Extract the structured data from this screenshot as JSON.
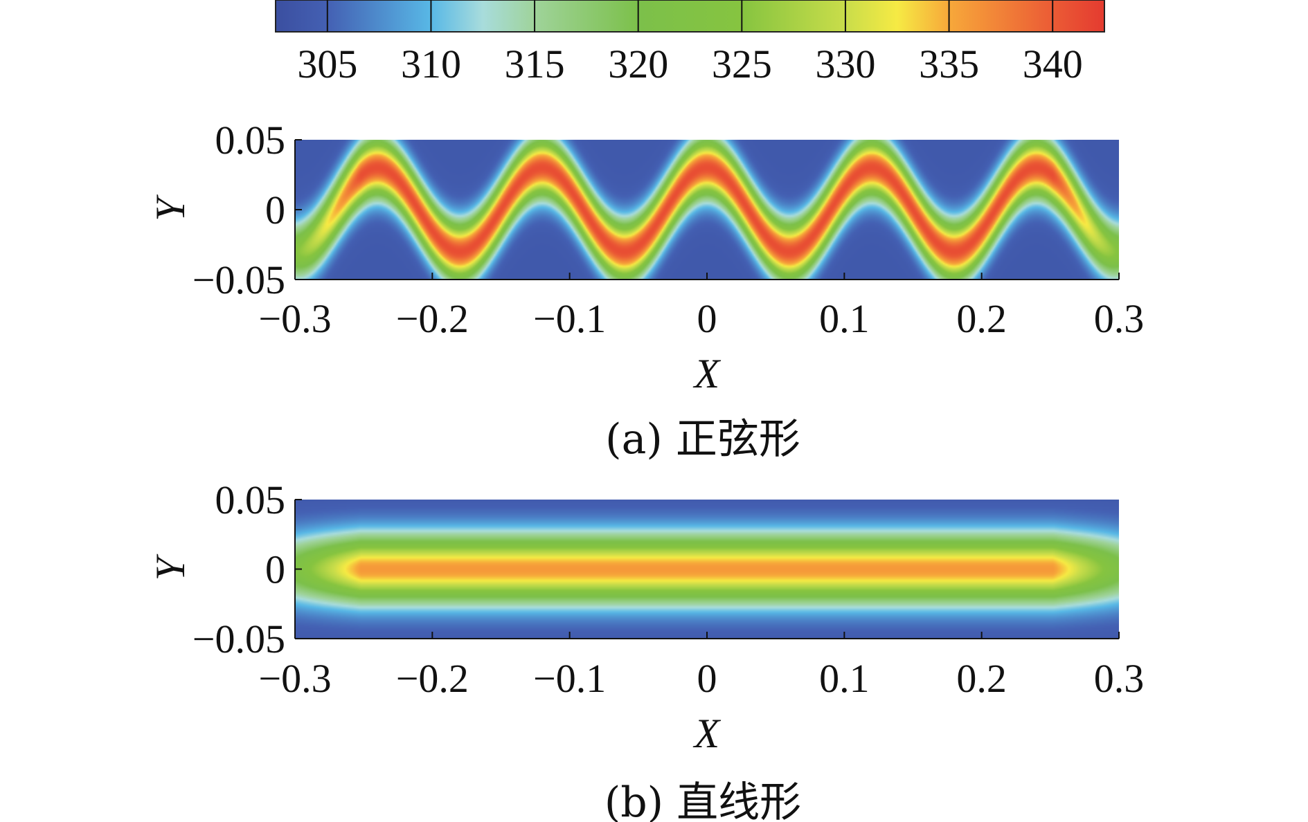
{
  "colorbar": {
    "ticks": [
      305,
      310,
      315,
      320,
      325,
      330,
      335,
      340
    ],
    "range": [
      302.5,
      342.5
    ],
    "stops": [
      {
        "v": 302.5,
        "c": "#3b4fa0"
      },
      {
        "v": 305,
        "c": "#4460b3"
      },
      {
        "v": 310,
        "c": "#58b8e6"
      },
      {
        "v": 312.5,
        "c": "#a8dcdc"
      },
      {
        "v": 315,
        "c": "#9fd39a"
      },
      {
        "v": 320,
        "c": "#7cc04a"
      },
      {
        "v": 325,
        "c": "#86c440"
      },
      {
        "v": 330,
        "c": "#c9dd4a"
      },
      {
        "v": 332.5,
        "c": "#f6ea44"
      },
      {
        "v": 335,
        "c": "#f7a83a"
      },
      {
        "v": 340,
        "c": "#eb5b35"
      },
      {
        "v": 342.5,
        "c": "#e43b30"
      }
    ]
  },
  "chart_data": [
    {
      "type": "heatmap",
      "title": "",
      "caption": "(a) 正弦形",
      "xlabel": "X",
      "ylabel": "Y",
      "xlim": [
        -0.3,
        0.3
      ],
      "ylim": [
        -0.05,
        0.05
      ],
      "xticks": [
        "−0.3",
        "−0.2",
        "−0.1",
        "0",
        "0.1",
        "0.2",
        "0.3"
      ],
      "xtick_values": [
        -0.3,
        -0.2,
        -0.1,
        0,
        0.1,
        0.2,
        0.3
      ],
      "yticks": [
        "0.05",
        "0",
        "−0.05"
      ],
      "ytick_values": [
        0.05,
        0,
        -0.05
      ],
      "field": {
        "shape": "sinusoid",
        "amplitude": 0.03,
        "wavelength": 0.12,
        "peak_x": 0.0,
        "core_value": 341,
        "ambient_value": 304,
        "half_width": 0.021
      }
    },
    {
      "type": "heatmap",
      "title": "",
      "caption": "(b) 直线形",
      "xlabel": "X",
      "ylabel": "Y",
      "xlim": [
        -0.3,
        0.3
      ],
      "ylim": [
        -0.05,
        0.05
      ],
      "xticks": [
        "−0.3",
        "−0.2",
        "−0.1",
        "0",
        "0.1",
        "0.2",
        "0.3"
      ],
      "xtick_values": [
        -0.3,
        -0.2,
        -0.1,
        0,
        0.1,
        0.2,
        0.3
      ],
      "yticks": [
        "0.05",
        "0",
        "−0.05"
      ],
      "ytick_values": [
        0.05,
        0,
        -0.05
      ],
      "field": {
        "shape": "line",
        "center_y": 0,
        "core_value": 336,
        "ambient_value": 304,
        "half_width": 0.024
      }
    }
  ]
}
